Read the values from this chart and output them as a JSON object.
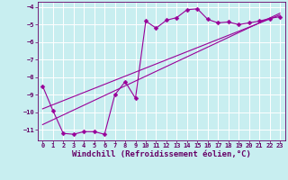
{
  "xlabel": "Windchill (Refroidissement éolien,°C)",
  "bg_color": "#c8eef0",
  "grid_color": "#ffffff",
  "line_color": "#990099",
  "markersize": 2.5,
  "linewidth": 0.8,
  "xlim": [
    -0.5,
    23.5
  ],
  "ylim": [
    -11.6,
    -3.7
  ],
  "xticks": [
    0,
    1,
    2,
    3,
    4,
    5,
    6,
    7,
    8,
    9,
    10,
    11,
    12,
    13,
    14,
    15,
    16,
    17,
    18,
    19,
    20,
    21,
    22,
    23
  ],
  "yticks": [
    -11,
    -10,
    -9,
    -8,
    -7,
    -6,
    -5,
    -4
  ],
  "curve1_x": [
    0,
    1,
    2,
    3,
    4,
    5,
    6,
    7,
    8,
    9,
    10,
    11,
    12,
    13,
    14,
    15,
    16,
    17,
    18,
    19,
    20,
    21,
    22,
    23
  ],
  "curve1_y": [
    -8.5,
    -9.9,
    -11.2,
    -11.25,
    -11.1,
    -11.1,
    -11.25,
    -9.0,
    -8.25,
    -9.2,
    -4.8,
    -5.2,
    -4.75,
    -4.6,
    -4.15,
    -4.1,
    -4.7,
    -4.9,
    -4.85,
    -5.0,
    -4.9,
    -4.8,
    -4.65,
    -4.55
  ],
  "curve2_x": [
    0,
    23
  ],
  "curve2_y": [
    -9.8,
    -4.45
  ],
  "curve3_x": [
    0,
    23
  ],
  "curve3_y": [
    -10.7,
    -4.35
  ],
  "font_color": "#660066",
  "tick_fontsize": 5.0,
  "xlabel_fontsize": 6.5
}
